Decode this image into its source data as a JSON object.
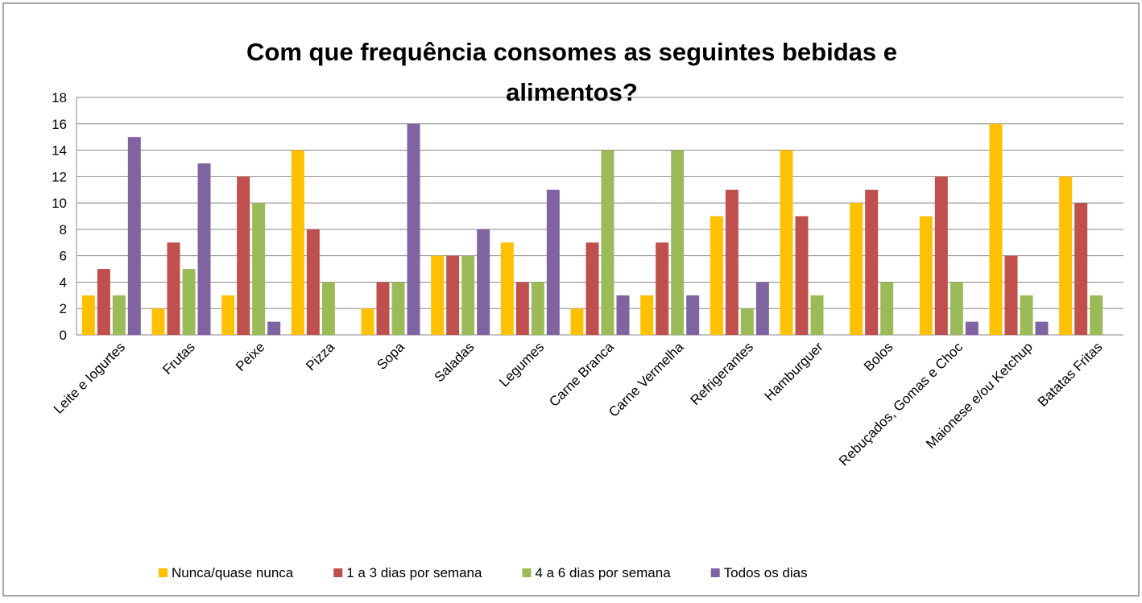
{
  "chart_data": {
    "type": "bar",
    "title": "Com que frequência consomes as seguintes bebidas e alimentos?",
    "categories": [
      "Leite e Iogurtes",
      "Frutas",
      "Peixe",
      "Pizza",
      "Sopa",
      "Saladas",
      "Legumes",
      "Carne Branca",
      "Carne Vermelha",
      "Refrigerantes",
      "Hamburguer",
      "Bolos",
      "Rebuçados, Gomas e Choc",
      "Maionese e/ou Ketchup",
      "Batatas Fritas"
    ],
    "series": [
      {
        "name": "Nunca/quase nunca",
        "color": "#ffc000",
        "values": [
          3,
          2,
          3,
          14,
          2,
          6,
          7,
          2,
          3,
          9,
          14,
          10,
          9,
          16,
          12
        ]
      },
      {
        "name": "1 a 3 dias por semana",
        "color": "#c0504d",
        "values": [
          5,
          7,
          12,
          8,
          4,
          6,
          4,
          7,
          7,
          11,
          9,
          11,
          12,
          6,
          10
        ]
      },
      {
        "name": "4 a 6 dias por semana",
        "color": "#9bbb59",
        "values": [
          3,
          5,
          10,
          4,
          4,
          6,
          4,
          14,
          14,
          2,
          3,
          4,
          4,
          3,
          3
        ]
      },
      {
        "name": "Todos os dias",
        "color": "#8064a2",
        "values": [
          15,
          13,
          1,
          0,
          16,
          8,
          11,
          3,
          3,
          4,
          0,
          0,
          1,
          1,
          0
        ]
      }
    ],
    "ylim": [
      0,
      18
    ],
    "yticks": [
      0,
      2,
      4,
      6,
      8,
      10,
      12,
      14,
      16,
      18
    ],
    "grid": true,
    "legend": "bottom"
  }
}
